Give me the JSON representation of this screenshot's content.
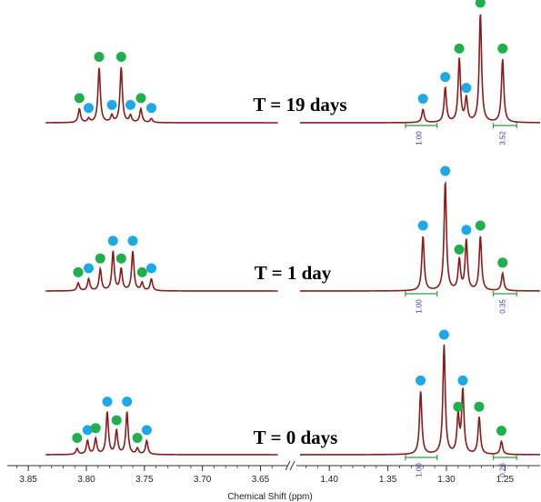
{
  "chart_data": {
    "type": "line",
    "xlabel": "Chemical Shift (ppm)",
    "axis_break": "//",
    "x_ticks_left": [
      "3.85",
      "3.80",
      "3.75",
      "3.70",
      "3.65"
    ],
    "x_ticks_right": [
      "1.40",
      "1.35",
      "1.30",
      "1.25"
    ],
    "x_tick_values_left": [
      3.85,
      3.8,
      3.75,
      3.7,
      3.65
    ],
    "x_tick_values_right": [
      1.4,
      1.35,
      1.3,
      1.25
    ],
    "xlim_left": [
      3.865,
      3.63
    ],
    "xlim_right": [
      1.425,
      1.22
    ],
    "line_color": "#8b1a1a",
    "marker_colors": {
      "green": "#1fb04b",
      "blue": "#1fa8e8"
    },
    "integral_color": "#2e9e3e",
    "panels": [
      {
        "label": "T = 19 days",
        "peaks": [
          {
            "ppm": 3.806,
            "h": 0.14,
            "m": "green"
          },
          {
            "ppm": 3.798,
            "h": 0.04,
            "m": "blue"
          },
          {
            "ppm": 3.789,
            "h": 0.56,
            "m": "green"
          },
          {
            "ppm": 3.778,
            "h": 0.07,
            "m": "blue"
          },
          {
            "ppm": 3.77,
            "h": 0.56,
            "m": "green"
          },
          {
            "ppm": 3.762,
            "h": 0.07,
            "m": "blue"
          },
          {
            "ppm": 3.753,
            "h": 0.14,
            "m": "green"
          },
          {
            "ppm": 3.744,
            "h": 0.04,
            "m": "blue"
          },
          {
            "ppm": 1.32,
            "h": 0.12,
            "m": "blue"
          },
          {
            "ppm": 1.301,
            "h": 0.32,
            "m": "blue"
          },
          {
            "ppm": 1.289,
            "h": 0.58,
            "m": "green"
          },
          {
            "ppm": 1.283,
            "h": 0.22,
            "m": "blue"
          },
          {
            "ppm": 1.271,
            "h": 1.0,
            "m": "green"
          },
          {
            "ppm": 1.252,
            "h": 0.58,
            "m": "green"
          }
        ],
        "integrals": [
          {
            "label": "1.00",
            "from": 1.335,
            "to": 1.308
          },
          {
            "label": "3.52",
            "from": 1.26,
            "to": 1.24
          }
        ]
      },
      {
        "label": "T = 1 day",
        "peaks": [
          {
            "ppm": 3.807,
            "h": 0.08,
            "m": "green"
          },
          {
            "ppm": 3.798,
            "h": 0.12,
            "m": "blue"
          },
          {
            "ppm": 3.788,
            "h": 0.22,
            "m": "green"
          },
          {
            "ppm": 3.777,
            "h": 0.4,
            "m": "blue"
          },
          {
            "ppm": 3.77,
            "h": 0.22,
            "m": "green"
          },
          {
            "ppm": 3.76,
            "h": 0.4,
            "m": "blue"
          },
          {
            "ppm": 3.752,
            "h": 0.08,
            "m": "green"
          },
          {
            "ppm": 3.744,
            "h": 0.12,
            "m": "blue"
          },
          {
            "ppm": 1.32,
            "h": 0.5,
            "m": "blue"
          },
          {
            "ppm": 1.301,
            "h": 1.0,
            "m": "blue"
          },
          {
            "ppm": 1.289,
            "h": 0.28,
            "m": "green"
          },
          {
            "ppm": 1.283,
            "h": 0.46,
            "m": "blue"
          },
          {
            "ppm": 1.271,
            "h": 0.5,
            "m": "green"
          },
          {
            "ppm": 1.252,
            "h": 0.16,
            "m": "green"
          }
        ],
        "integrals": [
          {
            "label": "1.00",
            "from": 1.335,
            "to": 1.308
          },
          {
            "label": "0.35",
            "from": 1.26,
            "to": 1.24
          }
        ]
      },
      {
        "label": "T = 0 days",
        "peaks": [
          {
            "ppm": 3.808,
            "h": 0.06,
            "m": "green"
          },
          {
            "ppm": 3.799,
            "h": 0.14,
            "m": "blue"
          },
          {
            "ppm": 3.792,
            "h": 0.16,
            "m": "green"
          },
          {
            "ppm": 3.782,
            "h": 0.43,
            "m": "blue"
          },
          {
            "ppm": 3.774,
            "h": 0.24,
            "m": "green"
          },
          {
            "ppm": 3.765,
            "h": 0.43,
            "m": "blue"
          },
          {
            "ppm": 3.756,
            "h": 0.06,
            "m": "green"
          },
          {
            "ppm": 3.748,
            "h": 0.14,
            "m": "blue"
          },
          {
            "ppm": 1.322,
            "h": 0.58,
            "m": "blue"
          },
          {
            "ppm": 1.302,
            "h": 1.0,
            "m": "blue"
          },
          {
            "ppm": 1.29,
            "h": 0.34,
            "m": "green"
          },
          {
            "ppm": 1.286,
            "h": 0.58,
            "m": "blue"
          },
          {
            "ppm": 1.272,
            "h": 0.34,
            "m": "green"
          },
          {
            "ppm": 1.253,
            "h": 0.12,
            "m": "green"
          }
        ],
        "integrals": [
          {
            "label": "1.00",
            "from": 1.335,
            "to": 1.308
          },
          {
            "label": "0.26",
            "from": 1.26,
            "to": 1.24
          }
        ]
      }
    ]
  }
}
